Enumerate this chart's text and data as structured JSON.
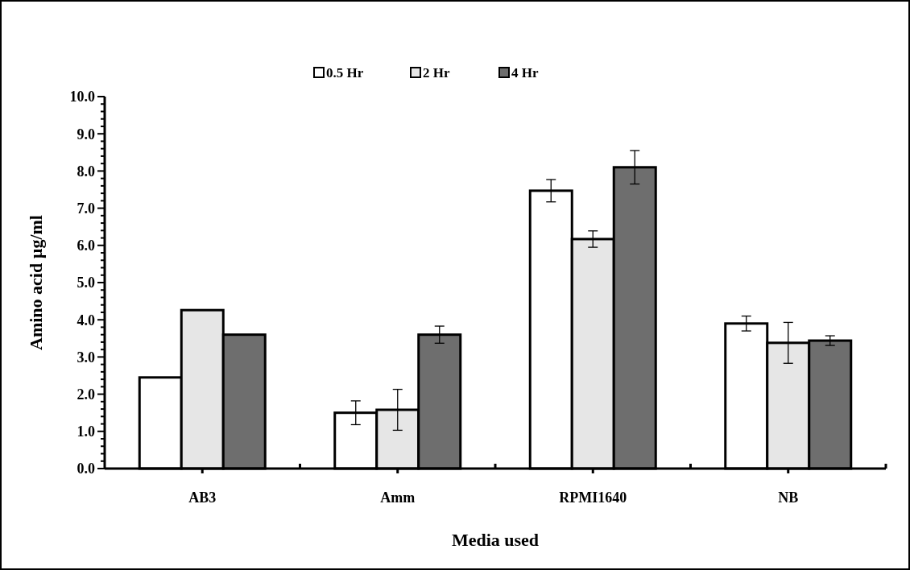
{
  "chart_data": {
    "type": "bar",
    "xlabel": "Media used",
    "ylabel": "Amino acid µg/ml",
    "categories": [
      "AB3",
      "Amm",
      "RPMI1640",
      "NB"
    ],
    "series": [
      {
        "name": "0.5 Hr",
        "color": "#ffffff",
        "values": [
          2.45,
          1.5,
          7.47,
          3.9
        ],
        "errors": [
          null,
          0.32,
          0.3,
          0.2
        ]
      },
      {
        "name": "2 Hr",
        "color": "#e6e6e6",
        "values": [
          4.26,
          1.58,
          6.17,
          3.38
        ],
        "errors": [
          null,
          0.55,
          0.22,
          0.55
        ]
      },
      {
        "name": "4 Hr",
        "color": "#6e6e6e",
        "values": [
          3.6,
          3.6,
          8.1,
          3.44
        ],
        "errors": [
          null,
          0.23,
          0.45,
          0.13
        ]
      }
    ],
    "ylim": [
      0,
      10
    ],
    "yticks": [
      {
        "value": 0,
        "label": "0.0"
      },
      {
        "value": 0.2,
        "label": null
      },
      {
        "value": 0.4,
        "label": null
      },
      {
        "value": 0.6,
        "label": null
      },
      {
        "value": 0.8,
        "label": null
      },
      {
        "value": 1,
        "label": "1.0"
      },
      {
        "value": 1.2,
        "label": null
      },
      {
        "value": 1.4,
        "label": null
      },
      {
        "value": 1.6,
        "label": null
      },
      {
        "value": 1.8,
        "label": null
      },
      {
        "value": 2,
        "label": "2.0"
      },
      {
        "value": 2.2,
        "label": null
      },
      {
        "value": 2.4,
        "label": null
      },
      {
        "value": 2.6,
        "label": null
      },
      {
        "value": 2.8,
        "label": null
      },
      {
        "value": 3,
        "label": "3.0"
      },
      {
        "value": 3.2,
        "label": null
      },
      {
        "value": 3.4,
        "label": null
      },
      {
        "value": 3.6,
        "label": null
      },
      {
        "value": 3.8,
        "label": null
      },
      {
        "value": 4,
        "label": "4.0"
      },
      {
        "value": 4.2,
        "label": null
      },
      {
        "value": 4.4,
        "label": null
      },
      {
        "value": 4.6,
        "label": null
      },
      {
        "value": 4.8,
        "label": null
      },
      {
        "value": 5,
        "label": "5.0"
      },
      {
        "value": 5.2,
        "label": null
      },
      {
        "value": 5.4,
        "label": null
      },
      {
        "value": 5.6,
        "label": null
      },
      {
        "value": 5.8,
        "label": null
      },
      {
        "value": 6,
        "label": "6.0"
      },
      {
        "value": 6.2,
        "label": null
      },
      {
        "value": 6.4,
        "label": null
      },
      {
        "value": 6.6,
        "label": null
      },
      {
        "value": 6.8,
        "label": null
      },
      {
        "value": 7,
        "label": "7.0"
      },
      {
        "value": 7.2,
        "label": null
      },
      {
        "value": 7.4,
        "label": null
      },
      {
        "value": 7.6,
        "label": null
      },
      {
        "value": 7.8,
        "label": null
      },
      {
        "value": 8,
        "label": "8.0"
      },
      {
        "value": 8.2,
        "label": null
      },
      {
        "value": 8.4,
        "label": null
      },
      {
        "value": 8.6,
        "label": null
      },
      {
        "value": 8.8,
        "label": null
      },
      {
        "value": 9,
        "label": "9.0"
      },
      {
        "value": 9.2,
        "label": null
      },
      {
        "value": 9.4,
        "label": null
      },
      {
        "value": 9.6,
        "label": null
      },
      {
        "value": 9.8,
        "label": null
      },
      {
        "value": 10,
        "label": "10.0"
      }
    ],
    "legend": "top"
  }
}
